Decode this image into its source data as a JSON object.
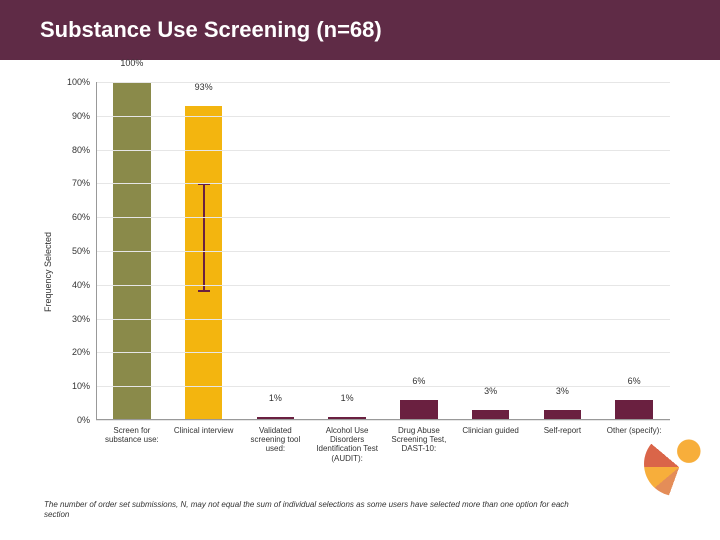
{
  "title": "Substance Use Screening (n=68)",
  "title_bar_color": "#5f2b46",
  "title_text_color": "#ffffff",
  "chart": {
    "type": "bar",
    "y_label": "Frequency Selected",
    "ylim": [
      0,
      100
    ],
    "ytick_step": 10,
    "ytick_suffix": "%",
    "grid_color": "#e6e6e6",
    "axis_color": "#999999",
    "label_fontsize": 9,
    "categories": [
      "Screen for substance use:",
      "Clinical interview",
      "Validated screening tool used:",
      "Alcohol Use Disorders Identification Test (AUDIT):",
      "Drug Abuse Screening Test, DAST-10:",
      "Clinician guided",
      "Self-report",
      "Other (specify):"
    ],
    "values": [
      100,
      93,
      1,
      1,
      6,
      3,
      3,
      6
    ],
    "value_labels": [
      "100%",
      "93%",
      "1%",
      "1%",
      "6%",
      "3%",
      "3%",
      "6%"
    ],
    "bar_colors": [
      "#8a8a4a",
      "#f3bput",
      "#6a2040",
      "#6a2040",
      "#6a2040",
      "#6a2040",
      "#6a2040",
      "#6a2040"
    ],
    "bar_colors_fixed": [
      "#8a8a4a",
      "#f3b50f",
      "#6a2040",
      "#6a2040",
      "#6a2040",
      "#6a2040",
      "#6a2040",
      "#6a2040"
    ],
    "error_bar": {
      "index": 1,
      "low": 38,
      "high": 70,
      "color": "#6a2040"
    }
  },
  "footnote": "The number of order set submissions, N, may not equal the sum of individual selections as some users have selected more than one option for each section"
}
